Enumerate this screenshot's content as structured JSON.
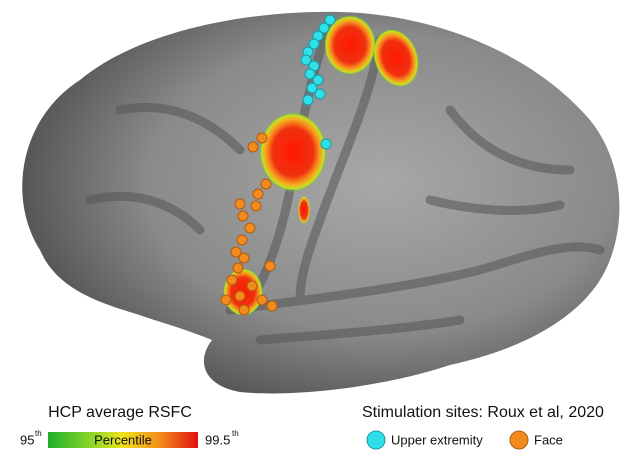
{
  "legend_left": {
    "title": "HCP average RSFC",
    "min_label": "95",
    "min_label_sup": "th",
    "bar_label": "Percentile",
    "max_label": "99.5",
    "max_label_sup": "th"
  },
  "legend_right": {
    "title": "Stimulation sites: Roux et al, 2020",
    "items": [
      "Upper extremity",
      "Face"
    ]
  }
}
